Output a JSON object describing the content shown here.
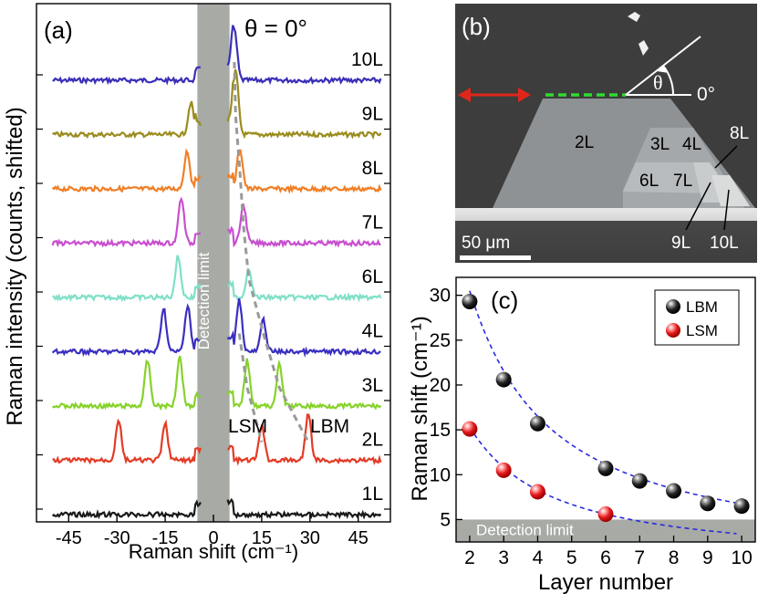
{
  "chart_data": [
    {
      "panel": "(a)",
      "type": "line",
      "annotation": "θ = 0°",
      "xlabel": "Raman shift (cm⁻¹)",
      "ylabel": "Raman intensity (counts, shifted)",
      "xlim": [
        -55,
        55
      ],
      "xticks": [
        -45,
        -30,
        -15,
        0,
        15,
        30,
        45
      ],
      "detection_band": [
        -5,
        5
      ],
      "detection_label": "Detection limit",
      "mode_labels": [
        "LSM",
        "LBM"
      ],
      "series": [
        {
          "name": "10L",
          "color": "#3a2fb8",
          "peaks": [
            {
              "x": 6.5,
              "h": 55
            }
          ]
        },
        {
          "name": "9L",
          "color": "#9a8c1e",
          "peaks": [
            {
              "x": -7.0,
              "h": 35
            },
            {
              "x": 6.9,
              "h": 70
            }
          ]
        },
        {
          "name": "8L",
          "color": "#f07f26",
          "peaks": [
            {
              "x": -8.2,
              "h": 42
            },
            {
              "x": 8.2,
              "h": 45
            }
          ]
        },
        {
          "name": "7L",
          "color": "#c84fd0",
          "peaks": [
            {
              "x": -10.0,
              "h": 50
            },
            {
              "x": 9.3,
              "h": 42
            }
          ]
        },
        {
          "name": "6L",
          "color": "#7fe0c8",
          "peaks": [
            {
              "x": -11.0,
              "h": 45
            },
            {
              "x": 11.0,
              "h": 32
            }
          ]
        },
        {
          "name": "4L",
          "color": "#3a2fc0",
          "peaks": [
            {
              "x": -15.5,
              "h": 48
            },
            {
              "x": -8.0,
              "h": 52
            },
            {
              "x": 8.0,
              "h": 58
            },
            {
              "x": 15.5,
              "h": 35
            }
          ]
        },
        {
          "name": "3L",
          "color": "#86d22a",
          "peaks": [
            {
              "x": -20.5,
              "h": 50
            },
            {
              "x": -10.5,
              "h": 55
            },
            {
              "x": 10.5,
              "h": 50
            },
            {
              "x": 20.5,
              "h": 45
            }
          ]
        },
        {
          "name": "2L",
          "color": "#e33b26",
          "peaks": [
            {
              "x": -29.5,
              "h": 45
            },
            {
              "x": -15.0,
              "h": 40
            },
            {
              "x": 15.0,
              "h": 38
            },
            {
              "x": 29.5,
              "h": 52
            }
          ]
        },
        {
          "name": "1L",
          "color": "#1a1a1a",
          "peaks": []
        }
      ]
    },
    {
      "panel": "(b)",
      "type": "image",
      "layer_labels": [
        "2L",
        "3L",
        "4L",
        "6L",
        "7L",
        "8L",
        "9L",
        "10L"
      ],
      "angle_label": "θ",
      "zero_label": "0°",
      "scale_bar": "50 μm"
    },
    {
      "panel": "(c)",
      "type": "scatter",
      "xlabel": "Layer number",
      "ylabel": "Raman shift (cm⁻¹)",
      "xlim": [
        1.6,
        10.4
      ],
      "ylim": [
        2.5,
        32
      ],
      "xticks": [
        2,
        3,
        4,
        5,
        6,
        7,
        8,
        9,
        10
      ],
      "yticks": [
        5,
        10,
        15,
        20,
        25,
        30
      ],
      "detection_limit": 5,
      "detection_label": "Detection limit",
      "series": [
        {
          "name": "LBM",
          "color": "#111111",
          "x": [
            2,
            3,
            4,
            6,
            7,
            8,
            9,
            10
          ],
          "y": [
            29.3,
            20.6,
            15.7,
            10.7,
            9.3,
            8.2,
            6.8,
            6.5
          ]
        },
        {
          "name": "LSM",
          "color": "#e31a1c",
          "x": [
            2,
            3,
            4,
            6
          ],
          "y": [
            15.1,
            10.5,
            8.1,
            5.6
          ]
        }
      ]
    }
  ]
}
